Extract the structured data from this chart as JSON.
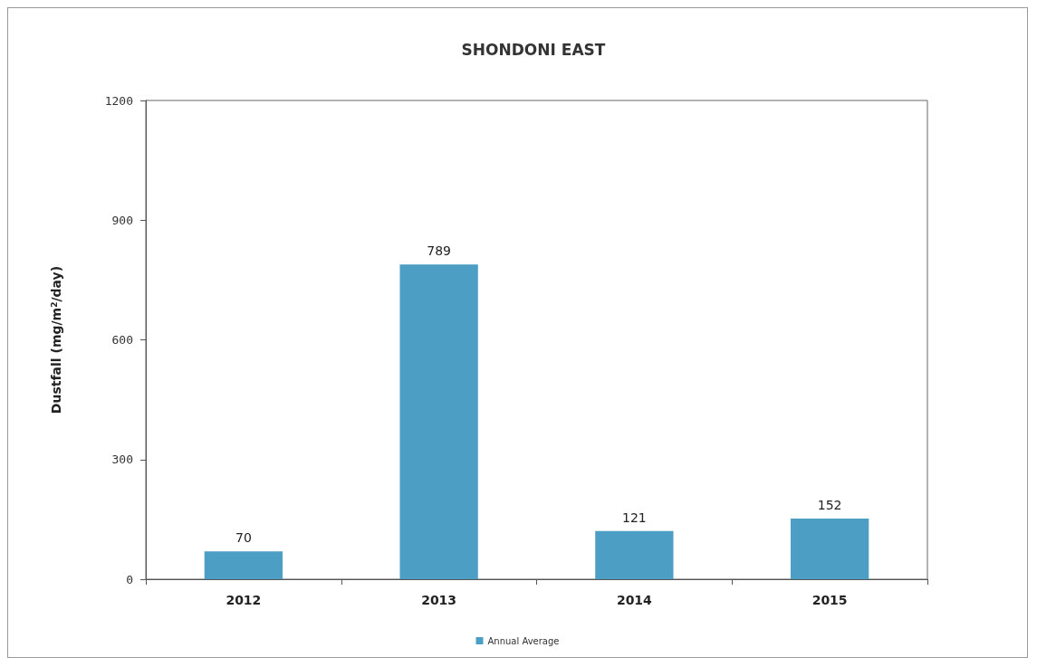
{
  "chart_data": {
    "type": "bar",
    "title": "SHONDONI EAST",
    "ylabel": "Dustfall (mg/m$^{2}$/day)",
    "categories": [
      "2012",
      "2013",
      "2014",
      "2015"
    ],
    "series": [
      {
        "name": "Annual Average",
        "color": "#4d9ec4",
        "values": [
          70,
          789,
          121,
          152
        ]
      }
    ],
    "ylim": [
      0,
      1200
    ],
    "yticks": [
      0,
      300,
      600,
      900,
      1200
    ],
    "grid": false,
    "legend": "bottom",
    "data_labels": true
  }
}
